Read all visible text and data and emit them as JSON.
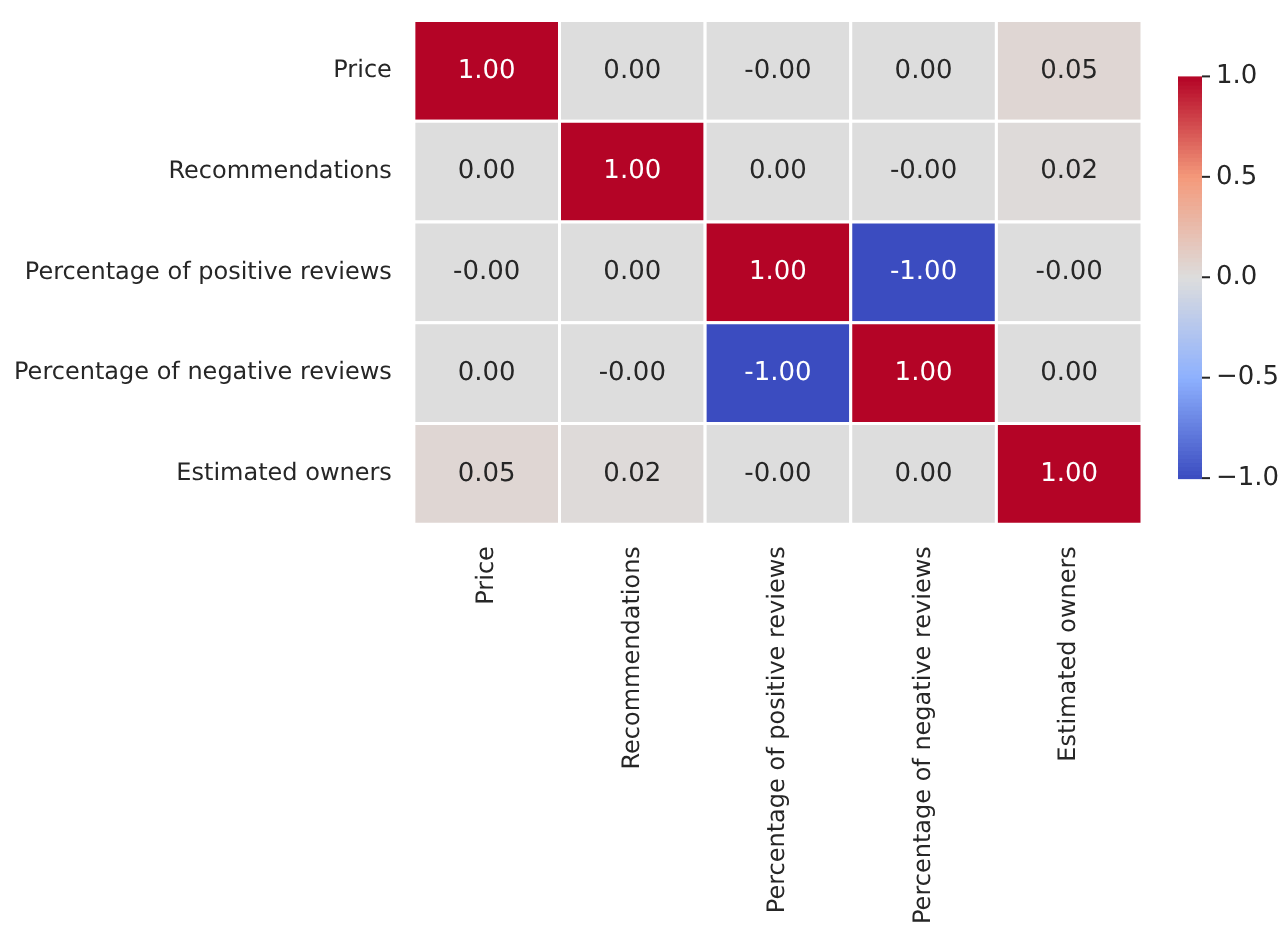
{
  "chart_data": {
    "type": "heatmap",
    "categories": [
      "Price",
      "Recommendations",
      "Percentage of positive reviews",
      "Percentage of negative reviews",
      "Estimated owners"
    ],
    "y_categories": [
      "Price",
      "Recommendations",
      "Percentage of positive reviews",
      "Percentage of negative reviews",
      "Estimated owners"
    ],
    "cells": [
      [
        1,
        0,
        0,
        0,
        0.05
      ],
      [
        0,
        1,
        0,
        0,
        0.02
      ],
      [
        0,
        0,
        1,
        -1,
        0
      ],
      [
        0,
        0,
        -1,
        1,
        0
      ],
      [
        0.05,
        0.02,
        0,
        0,
        1
      ]
    ],
    "cell_labels": [
      [
        "1.00",
        "0.00",
        "-0.00",
        "0.00",
        "0.05"
      ],
      [
        "0.00",
        "1.00",
        "0.00",
        "-0.00",
        "0.02"
      ],
      [
        "-0.00",
        "0.00",
        "1.00",
        "-1.00",
        "-0.00"
      ],
      [
        "0.00",
        "-0.00",
        "-1.00",
        "1.00",
        "0.00"
      ],
      [
        "0.05",
        "0.02",
        "-0.00",
        "0.00",
        "1.00"
      ]
    ],
    "clim": [
      -1,
      1
    ],
    "cticks": [
      {
        "value": -1,
        "label": "−1.0"
      },
      {
        "value": -0.5,
        "label": "−0.5"
      },
      {
        "value": 0,
        "label": "0.0"
      },
      {
        "value": 0.5,
        "label": "0.5"
      },
      {
        "value": 1,
        "label": "1.0"
      }
    ]
  }
}
